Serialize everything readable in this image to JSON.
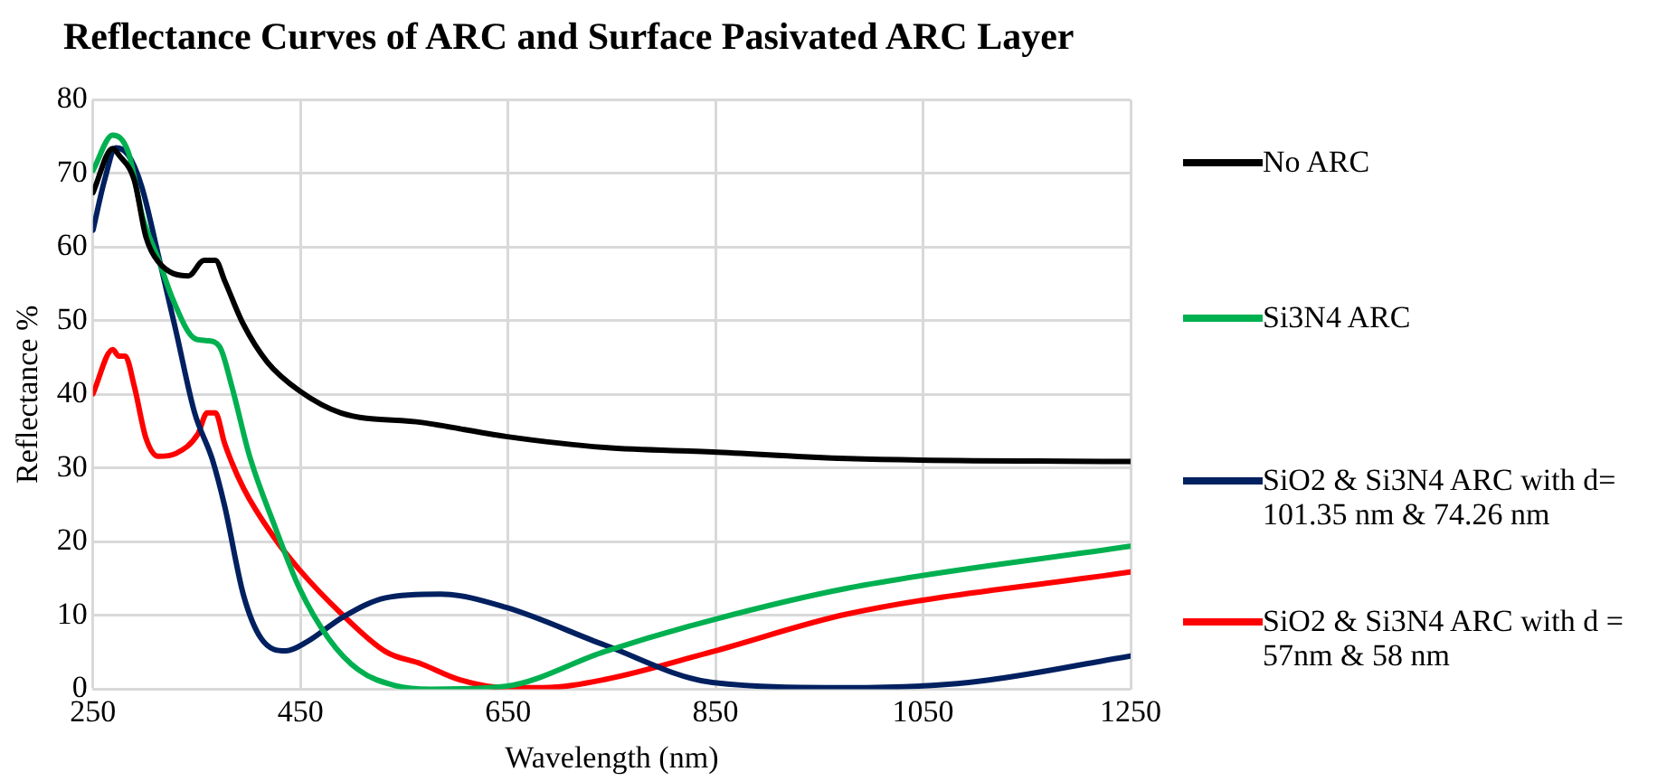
{
  "chart_data": {
    "type": "line",
    "title": "Reflectance Curves of ARC and Surface Pasivated ARC Layer",
    "xlabel": "Wavelength (nm)",
    "ylabel": "Reflectance %",
    "xlim": [
      250,
      1250
    ],
    "xticks": [
      250,
      450,
      650,
      850,
      1050,
      1250
    ],
    "ylim": [
      0,
      80
    ],
    "yticks": [
      0,
      10,
      20,
      30,
      40,
      50,
      60,
      70,
      80
    ],
    "grid": true,
    "legend": "right",
    "marker": "none",
    "line_style": "solid",
    "series": [
      {
        "name": "No ARC",
        "color": "#000000",
        "x": [
          250,
          269,
          275,
          290,
          301,
          313,
          342,
          357,
          368,
          377,
          395,
          418,
          449,
          489,
          567,
          648,
          743,
          847,
          977,
          1250
        ],
        "values": [
          67.4,
          73.4,
          72.5,
          69,
          61.4,
          58,
          56.1,
          58.2,
          58.2,
          55.4,
          49.5,
          44.4,
          40.5,
          37.5,
          36.2,
          34.3,
          32.8,
          32.2,
          31.3,
          30.9
        ]
      },
      {
        "name": "Si3N4 ARC",
        "color": "#00b050",
        "x": [
          250,
          269,
          284,
          298,
          313,
          327,
          348,
          360,
          372,
          384,
          401,
          425,
          449,
          477,
          506,
          541,
          576,
          648,
          743,
          847,
          977,
          1250
        ],
        "values": [
          70.4,
          75.2,
          72.9,
          64,
          58.4,
          52.9,
          47.6,
          47.3,
          46.5,
          41,
          31.6,
          22.2,
          13.7,
          6.9,
          2.6,
          0.5,
          0,
          0.4,
          5.1,
          9.4,
          13.7,
          19.4
        ]
      },
      {
        "name": "SiO2 & Si3N4 ARC with d= 101.35 nm & 74.26 nm",
        "color": "#002060",
        "x": [
          250,
          261,
          272,
          284,
          297,
          313,
          330,
          348,
          365,
          377,
          395,
          412,
          436,
          456,
          491,
          532,
          585,
          648,
          743,
          847,
          977,
          1094,
          1250
        ],
        "values": [
          62.3,
          69,
          73.5,
          72.5,
          68.2,
          58.9,
          48.6,
          37.5,
          31.2,
          24.8,
          12.8,
          6.9,
          5.2,
          6.4,
          9.8,
          12.4,
          12.9,
          11.1,
          6,
          0.9,
          0.2,
          0.9,
          4.5
        ]
      },
      {
        "name": "SiO2 & Si3N4 ARC with d = 57nm & 58 nm",
        "color": "#ff0000",
        "x": [
          250,
          269,
          275,
          281,
          290,
          301,
          313,
          330,
          351,
          360,
          368,
          377,
          395,
          425,
          449,
          489,
          532,
          567,
          603,
          648,
          684,
          743,
          847,
          977,
          1250
        ],
        "values": [
          40.1,
          46.1,
          45.2,
          45.2,
          41,
          34.1,
          31.6,
          32,
          34.6,
          37.5,
          37.5,
          33.3,
          27.3,
          20.5,
          16.2,
          10.3,
          5.1,
          3.4,
          1.3,
          0.2,
          0.2,
          1.3,
          5.1,
          10.2,
          15.9
        ]
      }
    ]
  }
}
